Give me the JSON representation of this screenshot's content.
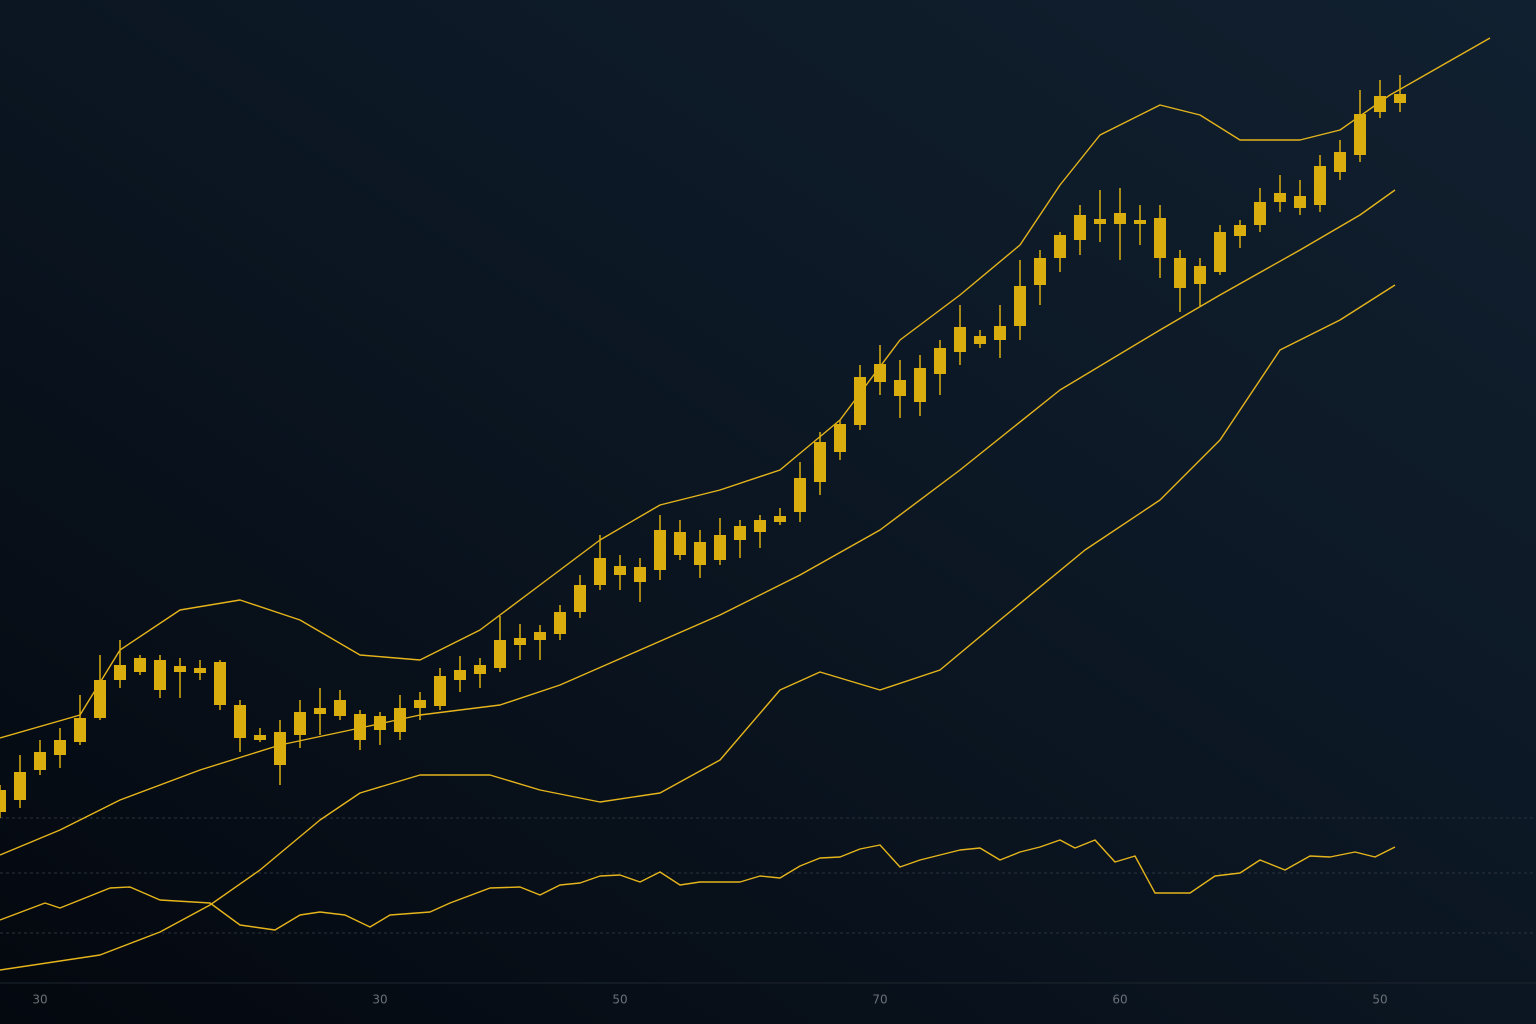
{
  "chart_data": {
    "type": "candlestick",
    "categories": [
      null,
      null,
      "30",
      null,
      null,
      null,
      null,
      null,
      null,
      null,
      null,
      null,
      null,
      null,
      null,
      null,
      null,
      null,
      null,
      "30",
      null,
      null,
      null,
      null,
      null,
      null,
      null,
      null,
      null,
      null,
      null,
      "50",
      null,
      null,
      null,
      null,
      null,
      null,
      null,
      null,
      null,
      null,
      null,
      null,
      "70",
      null,
      null,
      null,
      null,
      null,
      null,
      null,
      null,
      null,
      null,
      null,
      "60",
      null,
      null,
      null,
      null,
      null,
      null,
      null,
      null,
      null,
      null,
      null,
      null,
      "50",
      null
    ],
    "open": [
      21.2,
      22.4,
      25.4,
      26.9,
      28.2,
      30.6,
      34.4,
      35.2,
      36.4,
      35.2,
      35.1,
      36.2,
      31.9,
      28.4,
      29.2,
      28.9,
      31.0,
      30.8,
      31.0,
      29.4,
      29.2,
      31.6,
      31.8,
      34.4,
      35.0,
      35.6,
      37.9,
      38.4,
      39.0,
      41.2,
      43.9,
      44.9,
      45.7,
      45.4,
      46.9,
      48.2,
      46.4,
      48.4,
      49.2,
      50.2,
      51.2,
      54.2,
      57.2,
      59.9,
      64.2,
      64.4,
      62.2,
      65.0,
      67.2,
      68.0,
      68.4,
      69.8,
      73.9,
      76.6,
      78.4,
      80.0,
      80.0,
      80.0,
      80.6,
      76.6,
      74.0,
      75.2,
      78.8,
      79.9,
      82.2,
      81.6,
      81.9,
      85.2,
      86.9,
      91.2,
      92.1
    ],
    "high": [
      23.9,
      26.9,
      28.4,
      29.6,
      32.9,
      36.9,
      38.4,
      36.9,
      36.9,
      36.6,
      36.4,
      36.4,
      32.4,
      29.6,
      30.4,
      32.4,
      33.6,
      33.4,
      31.4,
      31.2,
      32.9,
      33.2,
      35.6,
      36.8,
      36.6,
      40.8,
      40.0,
      39.9,
      41.9,
      44.9,
      48.9,
      46.9,
      46.6,
      50.9,
      50.4,
      49.4,
      50.6,
      50.4,
      50.9,
      51.6,
      56.2,
      59.2,
      60.4,
      65.9,
      67.9,
      66.4,
      66.9,
      68.4,
      71.9,
      69.4,
      71.9,
      76.4,
      77.4,
      79.2,
      81.9,
      83.4,
      83.6,
      81.9,
      81.9,
      77.4,
      76.6,
      79.9,
      80.4,
      83.6,
      84.9,
      84.4,
      86.9,
      88.4,
      93.4,
      94.4,
      94.9
    ],
    "low": [
      20.6,
      21.6,
      24.9,
      25.6,
      27.9,
      30.4,
      33.6,
      34.9,
      32.6,
      32.6,
      34.4,
      31.4,
      27.2,
      28.2,
      23.9,
      27.6,
      28.9,
      30.4,
      27.4,
      27.9,
      28.4,
      30.4,
      31.4,
      33.2,
      33.6,
      35.2,
      36.4,
      36.4,
      38.4,
      40.6,
      43.4,
      43.4,
      42.2,
      44.4,
      46.4,
      44.6,
      45.9,
      46.6,
      47.6,
      49.9,
      50.2,
      52.9,
      56.4,
      59.4,
      62.9,
      60.6,
      60.8,
      62.9,
      65.9,
      67.6,
      66.6,
      68.4,
      71.9,
      75.2,
      76.9,
      78.2,
      76.4,
      77.9,
      74.6,
      71.2,
      71.8,
      74.9,
      77.6,
      79.2,
      81.2,
      80.9,
      81.2,
      84.4,
      86.2,
      90.6,
      91.2
    ],
    "close": [
      23.4,
      25.2,
      27.2,
      28.4,
      30.6,
      34.4,
      35.9,
      36.6,
      33.4,
      35.8,
      35.6,
      31.9,
      28.6,
      28.9,
      25.9,
      31.2,
      31.6,
      32.4,
      28.4,
      30.8,
      31.6,
      32.4,
      34.8,
      35.4,
      35.9,
      38.4,
      38.6,
      39.2,
      41.2,
      43.9,
      46.6,
      45.8,
      44.2,
      49.4,
      49.2,
      45.9,
      48.9,
      49.8,
      50.4,
      50.8,
      54.6,
      58.2,
      60.0,
      64.7,
      66.0,
      62.8,
      65.6,
      67.6,
      69.7,
      68.8,
      69.8,
      73.8,
      76.6,
      78.9,
      80.9,
      80.5,
      81.1,
      80.4,
      76.6,
      73.6,
      75.8,
      79.2,
      79.9,
      82.2,
      83.1,
      82.8,
      85.8,
      87.2,
      91.0,
      92.8,
      93.0
    ],
    "color": "#d9ad0e",
    "lines": [
      {
        "color": "#e6b51c",
        "x": [
          0,
          4,
          6,
          9,
          12,
          15,
          18,
          21,
          24,
          27,
          30,
          33,
          36,
          39,
          42,
          45,
          48,
          51,
          53,
          55,
          58,
          60,
          62,
          65,
          67,
          69.5,
          74.5
        ],
        "values": [
          28.6,
          30.9,
          37.4,
          41.4,
          42.4,
          40.4,
          36.9,
          36.4,
          39.4,
          43.9,
          48.4,
          51.9,
          53.4,
          55.4,
          60.4,
          68.4,
          72.9,
          77.9,
          83.9,
          88.9,
          91.9,
          90.9,
          88.4,
          88.4,
          89.4,
          92.9,
          98.6
        ]
      },
      {
        "color": "#e6b51c",
        "x": [
          0,
          3,
          6,
          10,
          14,
          18,
          21,
          25,
          28,
          32,
          36,
          40,
          44,
          48,
          53,
          58,
          61,
          65,
          68,
          69.75
        ],
        "values": [
          16.9,
          19.4,
          22.4,
          25.4,
          27.9,
          29.6,
          30.9,
          31.9,
          33.9,
          37.4,
          40.9,
          44.9,
          49.4,
          55.4,
          63.4,
          69.4,
          72.9,
          77.4,
          80.9,
          83.4
        ]
      },
      {
        "color": "#e6b51c",
        "x": [
          0,
          5,
          8,
          10.5,
          13,
          16,
          18,
          21,
          24.5,
          27,
          30,
          33,
          36,
          39,
          41,
          44,
          47,
          50,
          54.25,
          58,
          61,
          64,
          67,
          69.75
        ],
        "values": [
          5.4,
          6.9,
          9.2,
          11.9,
          15.4,
          20.4,
          23.1,
          24.9,
          24.9,
          23.4,
          22.2,
          23.1,
          26.4,
          33.4,
          35.2,
          33.4,
          35.4,
          40.4,
          47.4,
          52.4,
          58.4,
          67.4,
          70.4,
          73.9
        ]
      },
      {
        "color": "#e6b51c",
        "x": [
          0,
          2.25,
          3,
          4.25,
          5.5,
          6.5,
          8,
          10.5,
          12,
          13.75,
          15,
          16,
          17.25,
          18.5,
          19.5,
          21.5,
          22.5,
          24.5,
          26,
          27,
          28,
          29,
          30,
          31,
          32,
          33,
          34,
          35,
          37,
          38,
          39,
          40,
          41,
          42,
          43,
          44,
          45,
          46,
          47,
          48,
          49,
          50,
          51,
          52,
          53,
          53.75,
          54.75,
          55.75,
          56.75,
          57.75,
          59.5,
          60.75,
          62,
          63,
          64.25,
          65.5,
          66.5,
          67.75,
          68.75,
          69.75
        ],
        "values": [
          10.4,
          12.1,
          11.6,
          12.6,
          13.6,
          13.7,
          12.4,
          12.1,
          9.9,
          9.4,
          10.9,
          11.2,
          10.9,
          9.7,
          10.9,
          11.2,
          12.1,
          13.6,
          13.7,
          12.9,
          13.9,
          14.1,
          14.8,
          14.9,
          14.2,
          15.2,
          13.9,
          14.2,
          14.2,
          14.8,
          14.6,
          15.8,
          16.6,
          16.7,
          17.5,
          17.9,
          15.7,
          16.4,
          16.9,
          17.4,
          17.6,
          16.4,
          17.2,
          17.7,
          18.4,
          17.6,
          18.4,
          16.2,
          16.8,
          13.1,
          13.1,
          14.8,
          15.1,
          16.4,
          15.4,
          16.8,
          16.7,
          17.2,
          16.7,
          17.7
        ]
      }
    ],
    "xlim": [
      0,
      76.8
    ],
    "ylim": [
      0,
      102.4
    ]
  }
}
